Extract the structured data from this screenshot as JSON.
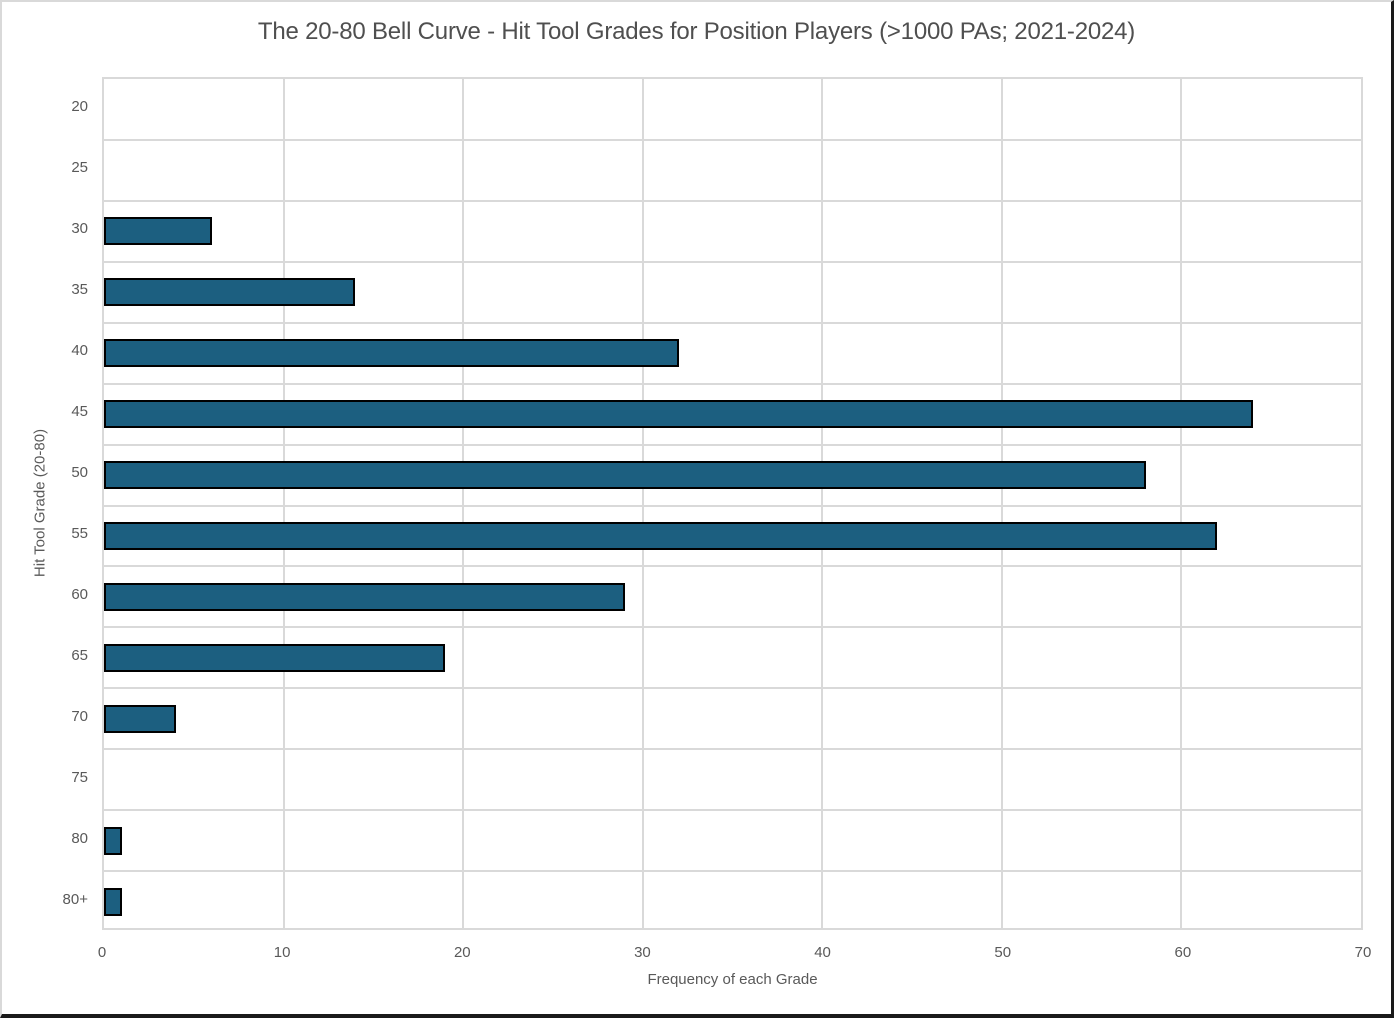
{
  "chart_data": {
    "type": "bar",
    "orientation": "horizontal",
    "title": "The 20-80 Bell Curve - Hit Tool Grades for Position Players (>1000 PAs; 2021-2024)",
    "xlabel": "Frequency of each Grade",
    "ylabel": "Hit Tool Grade (20-80)",
    "categories": [
      "20",
      "25",
      "30",
      "35",
      "40",
      "45",
      "50",
      "55",
      "60",
      "65",
      "70",
      "75",
      "80",
      "80+"
    ],
    "values": [
      0,
      0,
      6,
      14,
      32,
      64,
      58,
      62,
      29,
      19,
      4,
      0,
      1,
      1
    ],
    "xlim": [
      0,
      70
    ],
    "x_ticks": [
      0,
      10,
      20,
      30,
      40,
      50,
      60,
      70
    ],
    "grid": true,
    "legend": "none",
    "colors": {
      "bar_fill": "#1c5f80",
      "bar_border": "#000000",
      "gridline": "#d9d9d9",
      "tick_text": "#595959",
      "title_text": "#4f4f4f"
    }
  }
}
